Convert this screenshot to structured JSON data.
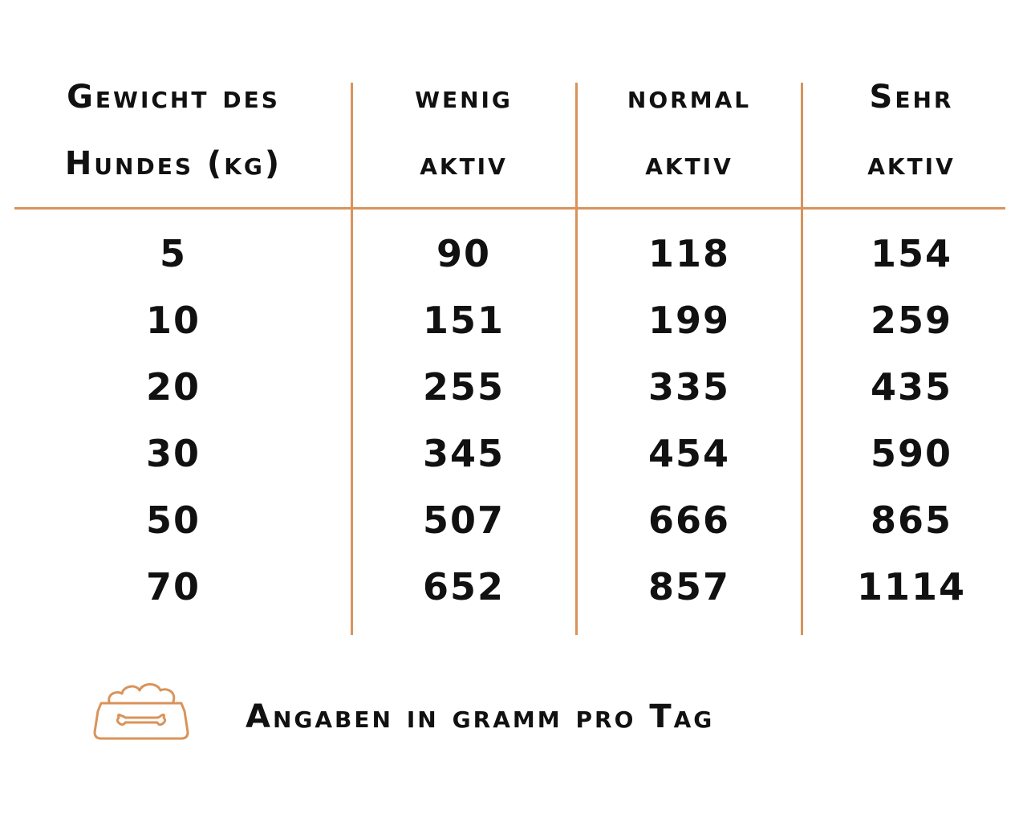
{
  "table": {
    "headers": [
      [
        "Gewicht des",
        "Hundes (kg)"
      ],
      [
        "wenig",
        "aktiv"
      ],
      [
        "normal",
        "aktiv"
      ],
      [
        "Sehr",
        "aktiv"
      ]
    ],
    "rows": [
      [
        "5",
        "90",
        "118",
        "154"
      ],
      [
        "10",
        "151",
        "199",
        "259"
      ],
      [
        "20",
        "255",
        "335",
        "435"
      ],
      [
        "30",
        "345",
        "454",
        "590"
      ],
      [
        "50",
        "507",
        "666",
        "865"
      ],
      [
        "70",
        "652",
        "857",
        "1114"
      ]
    ]
  },
  "footer": {
    "icon": "dog-bowl-bone-icon",
    "text": "Angaben in gramm pro Tag"
  },
  "colors": {
    "accent": "#d9935a",
    "text": "#111111"
  }
}
